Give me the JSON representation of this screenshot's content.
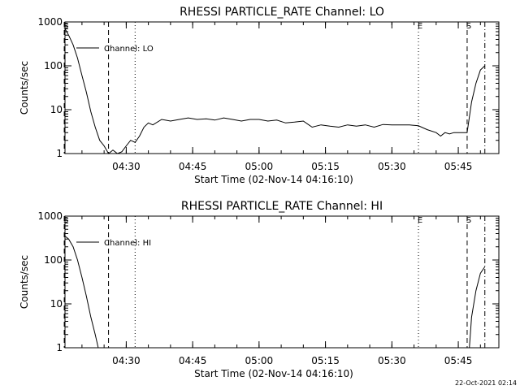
{
  "footer": {
    "timestamp": "22-Oct-2021 02:14"
  },
  "chart_data": [
    {
      "type": "line",
      "title": "RHESSI PARTICLE_RATE Channel: LO",
      "xlabel": "Start Time (02-Nov-14 04:16:10)",
      "ylabel": "Counts/sec",
      "yscale": "log",
      "ylim": [
        1,
        1000
      ],
      "xlim_minutes": [
        0,
        98
      ],
      "xticks": [
        "04:30",
        "04:45",
        "05:00",
        "05:15",
        "05:30",
        "05:45"
      ],
      "yticks": [
        "1",
        "10",
        "100",
        "1000"
      ],
      "legend": {
        "label": "Channel: LO",
        "position": "top-left"
      },
      "event_markers": [
        {
          "label": "S",
          "time": "04:16",
          "style": "dashed",
          "show_label": true
        },
        {
          "label": "",
          "time": "04:26",
          "style": "dashed",
          "show_label": false
        },
        {
          "label": "",
          "time": "04:32",
          "style": "dotted",
          "show_label": false
        },
        {
          "label": "E",
          "time": "05:36",
          "style": "dotted",
          "show_label": true
        },
        {
          "label": "S",
          "time": "05:47",
          "style": "dashed",
          "show_label": true
        },
        {
          "label": "",
          "time": "05:51",
          "style": "dashdot",
          "show_label": false
        }
      ],
      "series": [
        {
          "name": "Channel: LO",
          "x": [
            "04:16:10",
            "04:17:00",
            "04:18:00",
            "04:19:00",
            "04:20:00",
            "04:21:00",
            "04:22:00",
            "04:23:00",
            "04:24:00",
            "04:25:00",
            "04:26:00",
            "04:27:00",
            "04:28:00",
            "04:29:00",
            "04:30:00",
            "04:31:00",
            "04:32:00",
            "04:33:00",
            "04:34:00",
            "04:35:00",
            "04:36:00",
            "04:38:00",
            "04:40:00",
            "04:42:00",
            "04:44:00",
            "04:46:00",
            "04:48:00",
            "04:50:00",
            "04:52:00",
            "04:54:00",
            "04:56:00",
            "04:58:00",
            "05:00:00",
            "05:02:00",
            "05:04:00",
            "05:06:00",
            "05:08:00",
            "05:10:00",
            "05:12:00",
            "05:14:00",
            "05:16:00",
            "05:18:00",
            "05:20:00",
            "05:22:00",
            "05:24:00",
            "05:26:00",
            "05:28:00",
            "05:30:00",
            "05:32:00",
            "05:34:00",
            "05:36:00",
            "05:38:00",
            "05:40:00",
            "05:41:00",
            "05:42:00",
            "05:43:00",
            "05:44:00",
            "05:45:00",
            "05:46:00",
            "05:47:00",
            "05:48:00",
            "05:49:00",
            "05:50:00",
            "05:51:00"
          ],
          "y": [
            700,
            500,
            300,
            150,
            60,
            25,
            9,
            4,
            2,
            1.5,
            1,
            1.2,
            1,
            1.1,
            1.5,
            2,
            1.8,
            2.5,
            4,
            5,
            4.5,
            6,
            5.5,
            6,
            6.5,
            6,
            6.2,
            5.8,
            6.5,
            6,
            5.5,
            6,
            6,
            5.5,
            5.8,
            5,
            5.2,
            5.5,
            4,
            4.5,
            4.2,
            4,
            4.5,
            4.2,
            4.5,
            4,
            4.6,
            4.5,
            4.5,
            4.5,
            4.3,
            3.5,
            3,
            2.5,
            3,
            2.8,
            3,
            3,
            3,
            3,
            15,
            40,
            80,
            100
          ]
        }
      ]
    },
    {
      "type": "line",
      "title": "RHESSI PARTICLE_RATE Channel: HI",
      "xlabel": "Start Time (02-Nov-14 04:16:10)",
      "ylabel": "Counts/sec",
      "yscale": "log",
      "ylim": [
        1,
        1000
      ],
      "xlim_minutes": [
        0,
        98
      ],
      "xticks": [
        "04:30",
        "04:45",
        "05:00",
        "05:15",
        "05:30",
        "05:45"
      ],
      "yticks": [
        "1",
        "10",
        "100",
        "1000"
      ],
      "legend": {
        "label": "Channel: HI",
        "position": "top-left"
      },
      "event_markers": [
        {
          "label": "S",
          "time": "04:16",
          "style": "dashed",
          "show_label": true
        },
        {
          "label": "",
          "time": "04:26",
          "style": "dashed",
          "show_label": false
        },
        {
          "label": "",
          "time": "04:32",
          "style": "dotted",
          "show_label": false
        },
        {
          "label": "E",
          "time": "05:36",
          "style": "dotted",
          "show_label": true
        },
        {
          "label": "S",
          "time": "05:47",
          "style": "dashed",
          "show_label": true
        },
        {
          "label": "",
          "time": "05:51",
          "style": "dashdot",
          "show_label": false
        }
      ],
      "series": [
        {
          "name": "Channel: HI",
          "x": [
            "04:16:10",
            "04:17:00",
            "04:18:00",
            "04:19:00",
            "04:20:00",
            "04:21:00",
            "04:22:00",
            "04:23:00",
            "04:23:40",
            "05:47:30",
            "05:48:00",
            "05:49:00",
            "05:50:00",
            "05:51:00"
          ],
          "y": [
            350,
            300,
            200,
            100,
            40,
            15,
            5,
            2,
            1,
            1,
            5,
            20,
            50,
            70
          ]
        }
      ]
    }
  ]
}
